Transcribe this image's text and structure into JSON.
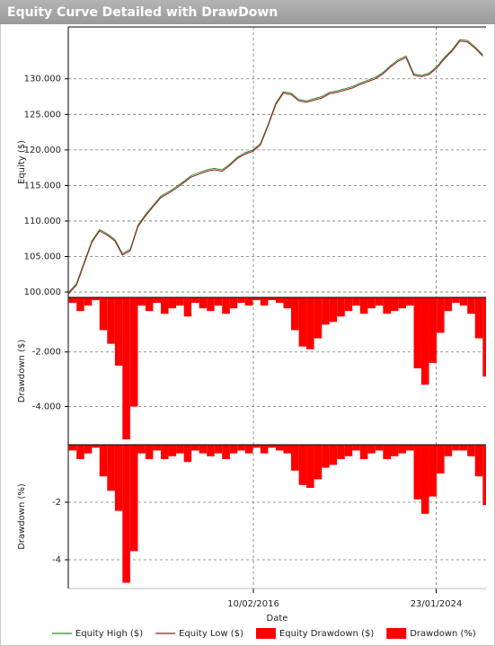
{
  "chart_data": {
    "type": "panels",
    "title": "Equity Curve Detailed with DrawDown",
    "xlabel": "Date",
    "x": [
      "2008-02-01",
      "2008-06-01",
      "2008-10-01",
      "2009-02-01",
      "2009-06-01",
      "2009-10-01",
      "2010-02-01",
      "2010-06-01",
      "2010-10-01",
      "2011-02-01",
      "2011-06-01",
      "2011-10-01",
      "2012-02-01",
      "2012-06-01",
      "2012-10-01",
      "2013-02-01",
      "2013-06-01",
      "2013-10-01",
      "2014-02-01",
      "2014-06-01",
      "2014-10-01",
      "2015-02-01",
      "2015-06-01",
      "2015-10-01",
      "2016-02-01",
      "2016-06-01",
      "2016-10-01",
      "2017-02-01",
      "2017-06-01",
      "2017-10-01",
      "2018-02-01",
      "2018-06-01",
      "2018-10-01",
      "2019-02-01",
      "2019-06-01",
      "2019-10-01",
      "2020-02-01",
      "2020-06-01",
      "2020-10-01",
      "2021-02-01",
      "2021-06-01",
      "2021-10-01",
      "2022-02-01",
      "2022-06-01",
      "2022-10-01",
      "2023-02-01",
      "2023-06-01",
      "2023-10-01",
      "2024-02-01",
      "2024-06-01",
      "2024-10-01",
      "2025-02-01",
      "2025-06-01",
      "2025-10-01",
      "2026-02-01"
    ],
    "xlim": [
      "2008-01-22",
      "2026-03-25"
    ],
    "xticks": [
      {
        "value": "2016-02-10",
        "label": "10/02/2016"
      },
      {
        "value": "2024-01-23",
        "label": "23/01/2024"
      }
    ],
    "grid": true,
    "legend": "bottom",
    "panels": [
      {
        "type": "line",
        "ylabel": "Equity ($)",
        "ylim": [
          99250,
          137300
        ],
        "yticks": [
          {
            "value": 100000,
            "label": "100.000"
          },
          {
            "value": 105000,
            "label": "105.000"
          },
          {
            "value": 110000,
            "label": "110.000"
          },
          {
            "value": 115000,
            "label": "115.000"
          },
          {
            "value": 120000,
            "label": "120.000"
          },
          {
            "value": 125000,
            "label": "125.000"
          },
          {
            "value": 130000,
            "label": "130.000"
          }
        ],
        "series": [
          {
            "name": "Equity High ($)",
            "color": "#2e8b2e",
            "values": [
              100000,
              101200,
              104200,
              107200,
              108800,
              108200,
              107400,
              105400,
              106000,
              109400,
              110900,
              112200,
              113500,
              114100,
              114800,
              115600,
              116400,
              116800,
              117200,
              117400,
              117200,
              118000,
              119000,
              119600,
              120000,
              120900,
              123600,
              126600,
              128200,
              128000,
              127100,
              126900,
              127200,
              127500,
              128100,
              128300,
              128600,
              128900,
              129400,
              129800,
              130200,
              130900,
              131900,
              132700,
              133200,
              130700,
              130500,
              130800,
              131700,
              133000,
              134100,
              135500,
              135400,
              134500,
              133400
            ]
          },
          {
            "name": "Equity Low ($)",
            "color": "#a01818",
            "values": [
              99800,
              101000,
              104000,
              107000,
              108600,
              108000,
              107200,
              105200,
              105800,
              109200,
              110700,
              112000,
              113300,
              113900,
              114600,
              115400,
              116200,
              116600,
              117000,
              117200,
              117000,
              117800,
              118800,
              119400,
              119800,
              120700,
              123400,
              126400,
              128000,
              127800,
              126900,
              126700,
              127000,
              127300,
              127900,
              128100,
              128400,
              128700,
              129200,
              129600,
              130000,
              130700,
              131700,
              132500,
              133000,
              130500,
              130300,
              130600,
              131500,
              132800,
              133900,
              135300,
              135200,
              134300,
              133200
            ]
          }
        ]
      },
      {
        "type": "bar",
        "ylabel": "Drawdown ($)",
        "ylim": [
          -5400,
          0
        ],
        "yticks": [
          {
            "value": -2000,
            "label": "-2.000"
          },
          {
            "value": -4000,
            "label": "-4.000"
          }
        ],
        "series": [
          {
            "name": "Equity Drawdown ($)",
            "color": "#ff0000",
            "values": [
              -200,
              -500,
              -300,
              -100,
              -1200,
              -1700,
              -2500,
              -5200,
              -4000,
              -300,
              -500,
              -200,
              -600,
              -400,
              -300,
              -700,
              -200,
              -400,
              -500,
              -300,
              -600,
              -400,
              -200,
              -300,
              -100,
              -300,
              -100,
              -200,
              -400,
              -1200,
              -1800,
              -1900,
              -1500,
              -1000,
              -900,
              -700,
              -500,
              -300,
              -600,
              -400,
              -300,
              -600,
              -500,
              -400,
              -300,
              -2600,
              -3200,
              -2400,
              -1300,
              -500,
              -200,
              -300,
              -600,
              -1500,
              -2900
            ]
          }
        ]
      },
      {
        "type": "bar",
        "ylabel": "Drawdown (%)",
        "ylim": [
          -5,
          0
        ],
        "yticks": [
          -2,
          -4
        ],
        "series": [
          {
            "name": "Drawdown (%)",
            "color": "#ff0000",
            "values": [
              -0.2,
              -0.5,
              -0.3,
              -0.1,
              -1.1,
              -1.6,
              -2.3,
              -4.8,
              -3.7,
              -0.3,
              -0.5,
              -0.2,
              -0.5,
              -0.4,
              -0.3,
              -0.6,
              -0.2,
              -0.3,
              -0.4,
              -0.3,
              -0.5,
              -0.3,
              -0.2,
              -0.3,
              -0.1,
              -0.3,
              -0.1,
              -0.2,
              -0.3,
              -0.9,
              -1.4,
              -1.5,
              -1.2,
              -0.8,
              -0.7,
              -0.5,
              -0.4,
              -0.2,
              -0.5,
              -0.3,
              -0.2,
              -0.5,
              -0.4,
              -0.3,
              -0.2,
              -1.9,
              -2.4,
              -1.8,
              -1.0,
              -0.4,
              -0.2,
              -0.2,
              -0.4,
              -1.1,
              -2.1
            ]
          }
        ]
      }
    ]
  }
}
